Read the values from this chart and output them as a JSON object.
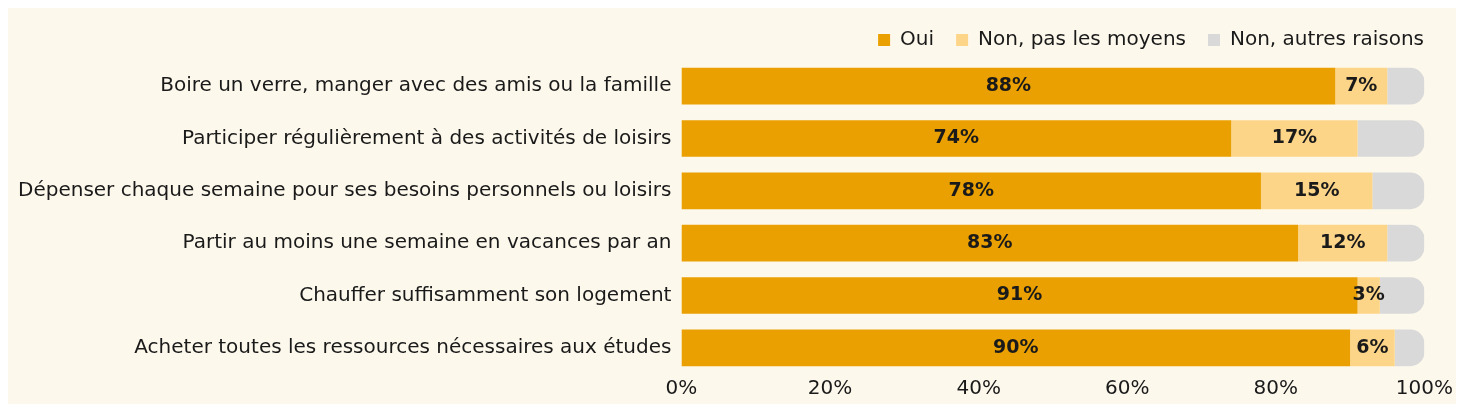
{
  "chart_data": {
    "type": "bar",
    "orientation": "horizontal",
    "stacked": true,
    "legend": "top right",
    "categories": [
      "Boire un verre, manger avec des amis ou la famille",
      "Participer régulièrement à des activités de loisirs",
      "Dépenser chaque semaine pour ses besoins personnels ou loisirs",
      "Partir au moins une semaine en vacances par an",
      "Chauffer suffisamment son logement",
      "Acheter toutes les ressources nécessaires aux études"
    ],
    "series": [
      {
        "name": "Oui",
        "color": "#eaa000",
        "values": [
          88,
          74,
          78,
          83,
          91,
          90
        ],
        "value_labels": [
          "88%",
          "74%",
          "78%",
          "83%",
          "91%",
          "90%"
        ]
      },
      {
        "name": "Non, pas les moyens",
        "color": "#fdd589",
        "values": [
          7,
          17,
          15,
          12,
          3,
          6
        ],
        "value_labels": [
          "7%",
          "17%",
          "15%",
          "12%",
          "3%",
          "6%"
        ]
      },
      {
        "name": "Non, autres raisons",
        "color": "#d9d9d9",
        "values": [
          5,
          9,
          7,
          5,
          6,
          4
        ]
      }
    ],
    "xlim": [
      0,
      100
    ],
    "xticks": [
      {
        "value": 0,
        "label": "0%"
      },
      {
        "value": 20,
        "label": "20%"
      },
      {
        "value": 40,
        "label": "40%"
      },
      {
        "value": 60,
        "label": "60%"
      },
      {
        "value": 80,
        "label": "80%"
      },
      {
        "value": 100,
        "label": "100%"
      }
    ],
    "grid": false
  }
}
